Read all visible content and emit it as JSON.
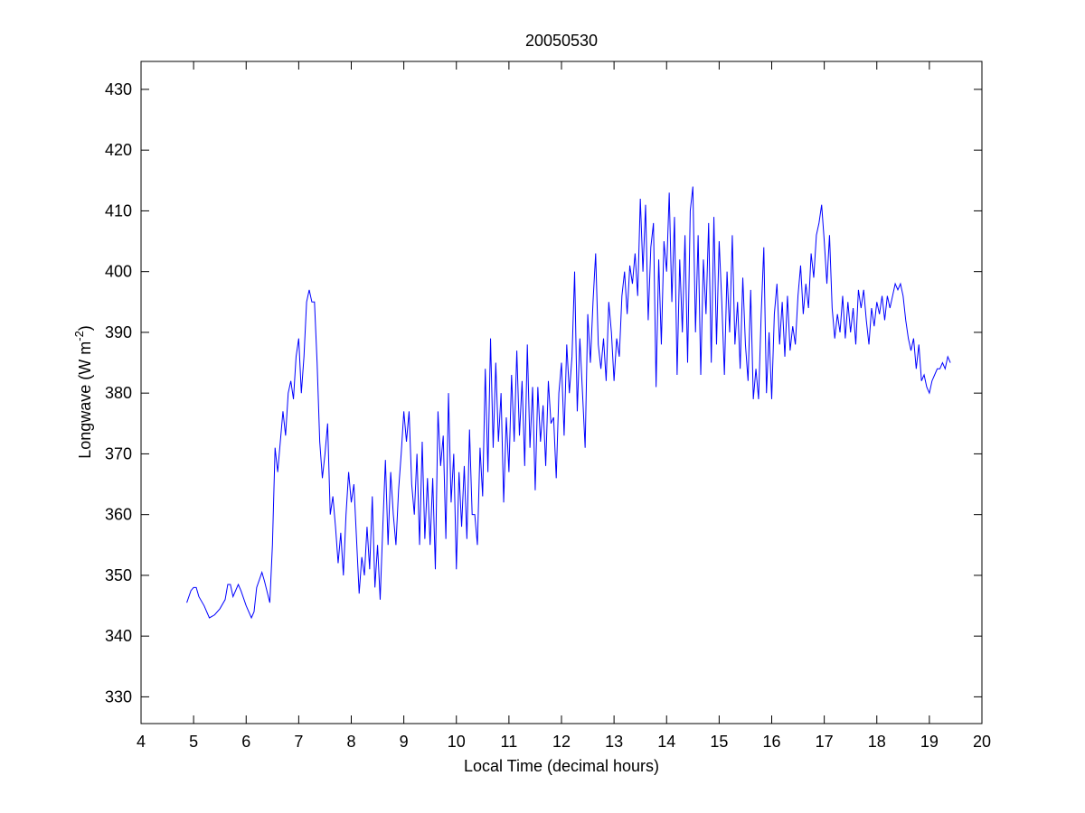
{
  "chart_data": {
    "type": "line",
    "title": "20050530",
    "xlabel": "Local Time (decimal hours)",
    "ylabel": [
      "Longwave (W m",
      "-2",
      ")"
    ],
    "xlim": [
      4,
      20
    ],
    "ylim": [
      325.6,
      434.6
    ],
    "xticks": [
      4,
      5,
      6,
      7,
      8,
      9,
      10,
      11,
      12,
      13,
      14,
      15,
      16,
      17,
      18,
      19,
      20
    ],
    "yticks": [
      330,
      340,
      350,
      360,
      370,
      380,
      390,
      400,
      410,
      420,
      430
    ],
    "box": true,
    "series": [
      {
        "color": "#0000ff",
        "x": [
          4.87,
          4.95,
          5.0,
          5.05,
          5.1,
          5.2,
          5.3,
          5.4,
          5.5,
          5.6,
          5.65,
          5.7,
          5.75,
          5.85,
          5.9,
          6.0,
          6.1,
          6.15,
          6.2,
          6.3,
          6.35,
          6.45,
          6.5,
          6.55,
          6.6,
          6.65,
          6.7,
          6.75,
          6.8,
          6.85,
          6.9,
          6.95,
          7.0,
          7.05,
          7.1,
          7.15,
          7.2,
          7.25,
          7.3,
          7.35,
          7.4,
          7.45,
          7.5,
          7.55,
          7.6,
          7.65,
          7.7,
          7.75,
          7.8,
          7.85,
          7.9,
          7.95,
          8.0,
          8.05,
          8.1,
          8.15,
          8.2,
          8.25,
          8.3,
          8.35,
          8.4,
          8.45,
          8.5,
          8.55,
          8.6,
          8.65,
          8.7,
          8.75,
          8.8,
          8.85,
          8.9,
          8.95,
          9.0,
          9.05,
          9.1,
          9.15,
          9.2,
          9.25,
          9.3,
          9.35,
          9.4,
          9.45,
          9.5,
          9.55,
          9.6,
          9.65,
          9.7,
          9.75,
          9.8,
          9.85,
          9.9,
          9.95,
          10.0,
          10.05,
          10.1,
          10.15,
          10.2,
          10.25,
          10.3,
          10.35,
          10.4,
          10.45,
          10.5,
          10.55,
          10.6,
          10.65,
          10.7,
          10.75,
          10.8,
          10.85,
          10.9,
          10.95,
          11.0,
          11.05,
          11.1,
          11.15,
          11.2,
          11.25,
          11.3,
          11.35,
          11.4,
          11.45,
          11.5,
          11.55,
          11.6,
          11.65,
          11.7,
          11.75,
          11.8,
          11.85,
          11.9,
          11.95,
          12.0,
          12.05,
          12.1,
          12.15,
          12.2,
          12.25,
          12.3,
          12.35,
          12.4,
          12.45,
          12.5,
          12.55,
          12.6,
          12.65,
          12.7,
          12.75,
          12.8,
          12.85,
          12.9,
          12.95,
          13.0,
          13.05,
          13.1,
          13.15,
          13.2,
          13.25,
          13.3,
          13.35,
          13.4,
          13.45,
          13.5,
          13.55,
          13.6,
          13.65,
          13.7,
          13.75,
          13.8,
          13.85,
          13.9,
          13.95,
          14.0,
          14.05,
          14.1,
          14.15,
          14.2,
          14.25,
          14.3,
          14.35,
          14.4,
          14.45,
          14.5,
          14.55,
          14.6,
          14.65,
          14.7,
          14.75,
          14.8,
          14.85,
          14.9,
          14.95,
          15.0,
          15.05,
          15.1,
          15.15,
          15.2,
          15.25,
          15.3,
          15.35,
          15.4,
          15.45,
          15.5,
          15.55,
          15.6,
          15.65,
          15.7,
          15.75,
          15.8,
          15.85,
          15.9,
          15.95,
          16.0,
          16.05,
          16.1,
          16.15,
          16.2,
          16.25,
          16.3,
          16.35,
          16.4,
          16.45,
          16.5,
          16.55,
          16.6,
          16.65,
          16.7,
          16.75,
          16.8,
          16.85,
          16.9,
          16.95,
          17.0,
          17.05,
          17.1,
          17.15,
          17.2,
          17.25,
          17.3,
          17.35,
          17.4,
          17.45,
          17.5,
          17.55,
          17.6,
          17.65,
          17.7,
          17.75,
          17.8,
          17.85,
          17.9,
          17.95,
          18.0,
          18.05,
          18.1,
          18.15,
          18.2,
          18.25,
          18.3,
          18.35,
          18.4,
          18.45,
          18.5,
          18.55,
          18.6,
          18.65,
          18.7,
          18.75,
          18.8,
          18.85,
          18.9,
          18.95,
          19.0,
          19.05,
          19.1,
          19.15,
          19.2,
          19.25,
          19.3,
          19.35,
          19.4
        ],
        "values": [
          345.5,
          347.5,
          348,
          348,
          346.5,
          345,
          343,
          343.5,
          344.5,
          346,
          348.5,
          348.5,
          346.5,
          348.5,
          347.5,
          345,
          343,
          344,
          348,
          350.5,
          349,
          345.5,
          355,
          371,
          367,
          372,
          377,
          373,
          380,
          382,
          379,
          386,
          389,
          380,
          386,
          395,
          397,
          395,
          395,
          385,
          372,
          366,
          370,
          375,
          360,
          363,
          358,
          352,
          357,
          350,
          360,
          367,
          362,
          365,
          356,
          347,
          353,
          350,
          358,
          351,
          363,
          348,
          355,
          346,
          358,
          369,
          355,
          367,
          360,
          355,
          364,
          370,
          377,
          372,
          377,
          365,
          360,
          370,
          355,
          372,
          356,
          366,
          355,
          366,
          351,
          377,
          368,
          373,
          356,
          380,
          362,
          370,
          351,
          367,
          358,
          368,
          356,
          374,
          360,
          360,
          355,
          371,
          363,
          384,
          367,
          389,
          371,
          385,
          372,
          380,
          362,
          376,
          367,
          383,
          372,
          387,
          373,
          382,
          368,
          388,
          371,
          381,
          364,
          381,
          372,
          378,
          368,
          382,
          375,
          376,
          366,
          380,
          385,
          373,
          388,
          380,
          386,
          400,
          377,
          389,
          380,
          371,
          393,
          385,
          395,
          403,
          388,
          384,
          389,
          382,
          395,
          390,
          382,
          389,
          386,
          396,
          400,
          393,
          401,
          398,
          403,
          396,
          412,
          400,
          411,
          392,
          404,
          408,
          381,
          402,
          388,
          405,
          400,
          413,
          395,
          409,
          383,
          402,
          390,
          406,
          385,
          410,
          414,
          390,
          406,
          383,
          402,
          393,
          408,
          385,
          409,
          388,
          405,
          395,
          383,
          400,
          390,
          406,
          388,
          395,
          384,
          399,
          388,
          382,
          397,
          379,
          384,
          379,
          393,
          404,
          380,
          390,
          379,
          393,
          398,
          388,
          395,
          386,
          396,
          387,
          391,
          388,
          396,
          401,
          393,
          398,
          394,
          403,
          399,
          406,
          408,
          411,
          405,
          398,
          406,
          394,
          389,
          393,
          390,
          396,
          389,
          395,
          390,
          394,
          388,
          397,
          394,
          397,
          392,
          388,
          394,
          391,
          395,
          393,
          396,
          392,
          396,
          394,
          396,
          398,
          397,
          398,
          396,
          392,
          389,
          387,
          389,
          384,
          388,
          382,
          383,
          381,
          380,
          382,
          383,
          384,
          384,
          385,
          384,
          386,
          385
        ]
      }
    ]
  }
}
